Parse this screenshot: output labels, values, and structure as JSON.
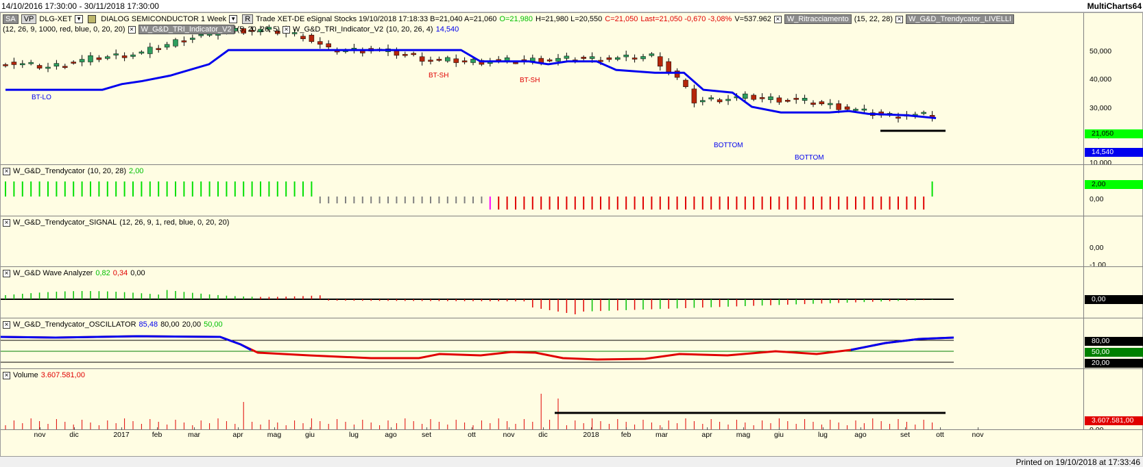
{
  "window": {
    "range": "14/10/2016 17:30:00 - 30/11/2018 17:30:00",
    "app": "MultiCharts64"
  },
  "price_pane": {
    "line1": {
      "sa": "SA",
      "vp": "VP",
      "symbol": "DLG-XET",
      "name": "DIALOG SEMICONDUCTOR  1 Week",
      "r": "R",
      "info": "Trade  XET-DE  eSignal  Stocks  19/10/2018  17:18:33  B=21,040  A=21,060",
      "open": "O=21,980",
      "hl": "H=21,980  L=20,550",
      "close": "C=21,050",
      "last": "Last=21,050  -0,670  -3,08%",
      "vol": "V=537.962",
      "study1": "W_Ritracciamento",
      "study1_params": "(15, 22, 28)",
      "study2": "W_G&D_Trendycator_LIVELLI"
    },
    "line2": {
      "params0": "(12, 26, 9, 1000, red, blue, 0, 20, 20)",
      "study3": "W_G&D_TRI_Indicator_V2",
      "study3_params": "(5, 20, 26, 5)",
      "study4": "W_G&D_TRI_Indicator_V2",
      "study4_params": "(10, 20, 26, 4)",
      "study4_value": "14,540"
    },
    "y_labels": [
      "50,000",
      "40,000",
      "30,000",
      "20,000"
    ],
    "badge_price": "21,050",
    "badge_level": "14,540",
    "bottom_cut": "10,000",
    "annotations": [
      "BT-LO",
      "BT-SH",
      "BT-SH",
      "BOTTOM",
      "BOTTOM"
    ],
    "colors": {
      "up": "#2e9e5e",
      "down": "#b5260b",
      "trend": "#0000ee",
      "badge_price": "#00ff00",
      "badge_level": "#0000ee"
    }
  },
  "trendycator_pane": {
    "title": "W_G&D_Trendycator",
    "params": "(10, 20, 28)",
    "value": "2,00",
    "y_labels": [
      "0,00"
    ],
    "badge": "2,00"
  },
  "signal_pane": {
    "title": "W_G&D_Trendycator_SIGNAL",
    "params": "(12, 26, 9, 1, red, blue, 0, 20, 20)",
    "y_labels": [
      "0,00",
      "-1,00"
    ]
  },
  "wave_pane": {
    "title": "W_G&D Wave Analyzer",
    "v1": "0,82",
    "v2": "0,34",
    "v3": "0,00",
    "badge": "0,00"
  },
  "osc_pane": {
    "title": "W_G&D_Trendycator_OSCILLATOR",
    "v1": "85,48",
    "v2": "80,00",
    "v3": "20,00",
    "v4": "50,00",
    "badges": [
      "80,00",
      "50,00",
      "20,00"
    ]
  },
  "volume_pane": {
    "title": "Volume",
    "value": "3.607.581,00",
    "badge": "3.607.581,00",
    "bottom_cut": "0,00"
  },
  "x_axis": [
    "nov",
    "dic",
    "2017",
    "feb",
    "mar",
    "apr",
    "mag",
    "giu",
    "lug",
    "ago",
    "set",
    "ott",
    "nov",
    "dic",
    "2018",
    "feb",
    "mar",
    "apr",
    "mag",
    "giu",
    "lug",
    "ago",
    "set",
    "ott",
    "nov"
  ],
  "footer": "Printed on 19/10/2018 at 17:33:46"
}
